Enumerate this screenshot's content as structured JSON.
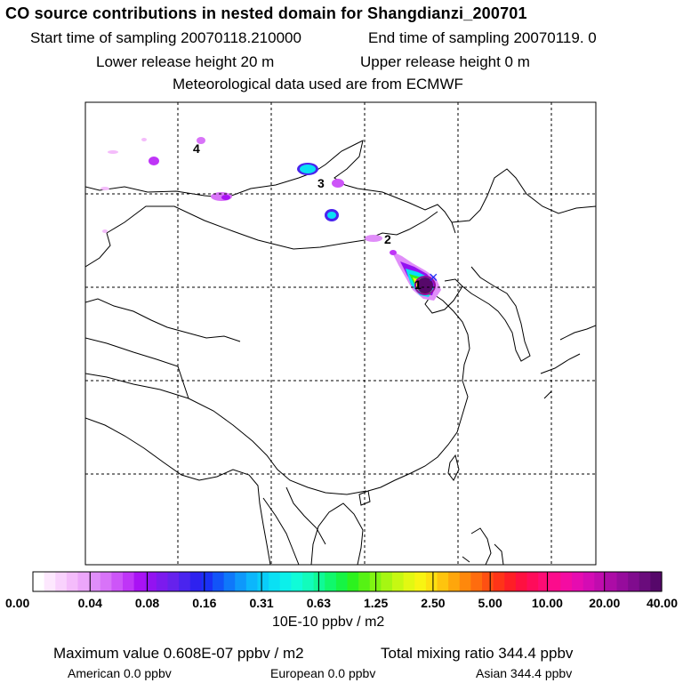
{
  "header": {
    "title": "CO  source contributions in nested domain for Shangdianzi_200701",
    "start_label": "Start time of sampling 20070118.210000",
    "end_label": "End time of sampling 20070119.     0",
    "lower_label": "Lower release height   20 m",
    "upper_label": "Upper release height    0 m",
    "met_label": "Meteorological data used are from ECMWF"
  },
  "chart_data": {
    "type": "heatmap",
    "title": "CO  source contributions in nested domain for Shangdianzi_200701",
    "colorbar": {
      "unit": "10E-10 ppbv / m2",
      "tick_labels": [
        "0.00",
        "0.04",
        "0.08",
        "0.16",
        "0.31",
        "0.63",
        "1.25",
        "2.50",
        "5.00",
        "10.00",
        "20.00",
        "40.00"
      ],
      "colors": [
        "#ffffff",
        "#fde8fe",
        "#f9d2fd",
        "#f4bcfb",
        "#eca6fa",
        "#e08ef9",
        "#d873f8",
        "#cd55f8",
        "#bf35f7",
        "#a912f4",
        "#9312f1",
        "#7c1aee",
        "#6622ec",
        "#4a24ee",
        "#2e22ef",
        "#1a30f5",
        "#1254f8",
        "#0f78fa",
        "#0e98fb",
        "#0cb6fc",
        "#0acdf9",
        "#0ae0f4",
        "#0cf0ea",
        "#10fcd8",
        "#12fcbc",
        "#10fa96",
        "#10f86c",
        "#16f444",
        "#2cf21e",
        "#56f214",
        "#80f412",
        "#a6f612",
        "#c6f812",
        "#e2f812",
        "#f8f412",
        "#fee010",
        "#fec40e",
        "#fea60c",
        "#fe880c",
        "#fe6c0e",
        "#fe5012",
        "#fe3418",
        "#fe1e26",
        "#fe1040",
        "#fe0c5a",
        "#fe0c74",
        "#fc0c8c",
        "#f40ca2",
        "#e60cb0",
        "#d40cb4",
        "#c00cae",
        "#ac0ca6",
        "#960c9c",
        "#800c8e",
        "#6a0c7c",
        "#56086a"
      ]
    },
    "labeled_points": [
      "1",
      "2",
      "3",
      "4"
    ],
    "receptor_marker": "×",
    "plumes": [
      {
        "id": "main-plume",
        "level": 40.0
      },
      {
        "id": "plume-2",
        "level": 0.16
      },
      {
        "id": "plume-3",
        "level": 0.31
      },
      {
        "id": "plume-4",
        "level": 0.08
      }
    ]
  },
  "summary": {
    "max_label": "Maximum value  0.608E-07 ppbv / m2",
    "total_label": "Total mixing ratio     344.4 ppbv",
    "regions": [
      {
        "label": "American        0.0 ppbv"
      },
      {
        "label": "European       0.0 ppbv"
      },
      {
        "label": "Asian      344.4 ppbv"
      }
    ]
  }
}
